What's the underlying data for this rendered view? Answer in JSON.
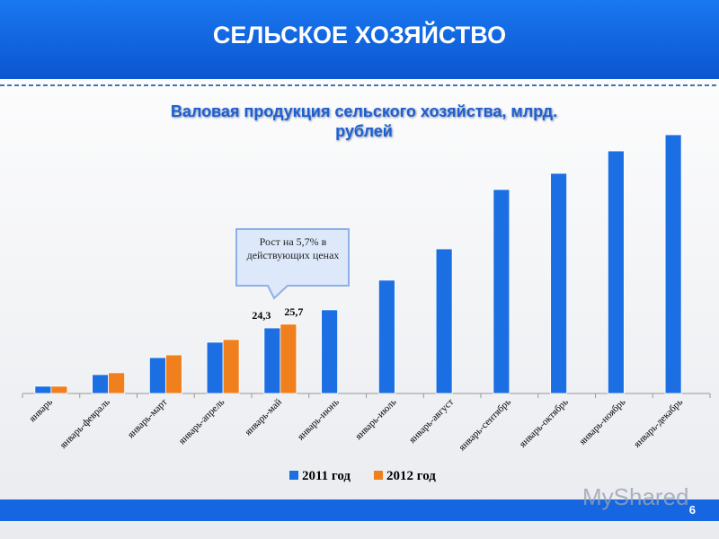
{
  "header": {
    "title": "СЕЛЬСКОЕ ХОЗЯЙСТВО",
    "page_number": "6",
    "watermark": "MyShared"
  },
  "chart_data": {
    "type": "bar",
    "title": "Валовая продукция сельского хозяйства, млрд. рублей",
    "annotation": "Рост на 5,7% в действующих ценах",
    "categories": [
      "январь",
      "январь-февраль",
      "январь-март",
      "январь-апрель",
      "январь-май",
      "январь-июнь",
      "январь-июль",
      "январь-август",
      "январь-сентябрь",
      "январь-октябрь",
      "январь-ноябрь",
      "январь-декабрь"
    ],
    "series": [
      {
        "name": "2011 год",
        "color": "#1c6fe3",
        "values": [
          2.7,
          7.0,
          13.3,
          19.0,
          24.3,
          31.0,
          42.0,
          53.6,
          75.6,
          81.6,
          89.9,
          95.9
        ],
        "value_labels": [
          null,
          null,
          null,
          null,
          "24,3",
          null,
          null,
          null,
          null,
          null,
          null,
          null
        ]
      },
      {
        "name": "2012 год",
        "color": "#f0801e",
        "values": [
          2.7,
          7.7,
          14.3,
          20.0,
          25.7,
          null,
          null,
          null,
          null,
          null,
          null,
          null
        ],
        "value_labels": [
          null,
          null,
          null,
          null,
          "25,7",
          null,
          null,
          null,
          null,
          null,
          null,
          null
        ]
      }
    ]
  }
}
